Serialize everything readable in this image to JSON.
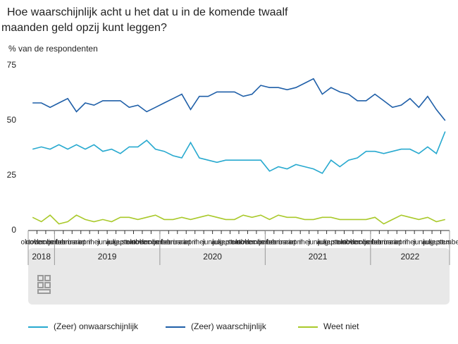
{
  "chart_data": {
    "type": "line",
    "title": [
      "Hoe waarschijnlijk acht u het dat u in de komende twaalf",
      "maanden geld opzij kunt leggen?"
    ],
    "subtitle": "% van de respondenten",
    "categories": [
      "oktober",
      "november",
      "december",
      "januari",
      "februari",
      "maart",
      "april",
      "mei",
      "juni",
      "juli",
      "augustus",
      "september",
      "oktober",
      "november",
      "december",
      "januari",
      "februari",
      "maart",
      "april",
      "mei",
      "juni",
      "juli",
      "augustus",
      "september",
      "oktober",
      "november",
      "december",
      "januari",
      "februari",
      "maart",
      "april",
      "mei",
      "juni",
      "juli",
      "augustus",
      "september",
      "oktober",
      "november",
      "december",
      "januari",
      "februari",
      "maart",
      "april",
      "mei",
      "juni",
      "juli",
      "augustus",
      "september"
    ],
    "year_groups": [
      {
        "label": "2018",
        "months": 3
      },
      {
        "label": "2019",
        "months": 12
      },
      {
        "label": "2020",
        "months": 12
      },
      {
        "label": "2021",
        "months": 12
      },
      {
        "label": "2022",
        "months": 9
      }
    ],
    "series": [
      {
        "name": "(Zeer) onwaarschijnlijk",
        "color": "#27a9cf",
        "values": [
          37,
          38,
          37,
          39,
          37,
          39,
          37,
          39,
          36,
          37,
          35,
          38,
          38,
          41,
          37,
          36,
          34,
          33,
          40,
          33,
          32,
          31,
          32,
          32,
          32,
          32,
          32,
          27,
          29,
          28,
          30,
          29,
          28,
          26,
          32,
          29,
          32,
          33,
          36,
          36,
          35,
          36,
          37,
          37,
          35,
          38,
          35,
          45
        ]
      },
      {
        "name": "(Zeer) waarschijnlijk",
        "color": "#1f5fa8",
        "values": [
          58,
          58,
          56,
          58,
          60,
          54,
          58,
          57,
          59,
          59,
          59,
          56,
          57,
          54,
          56,
          58,
          60,
          62,
          55,
          61,
          61,
          63,
          63,
          63,
          61,
          62,
          66,
          65,
          65,
          64,
          65,
          67,
          69,
          62,
          65,
          63,
          62,
          59,
          59,
          62,
          59,
          56,
          57,
          60,
          56,
          61,
          55,
          50
        ]
      },
      {
        "name": "Weet niet",
        "color": "#a9c92a",
        "values": [
          6,
          4,
          7,
          3,
          4,
          7,
          5,
          4,
          5,
          4,
          6,
          6,
          5,
          6,
          7,
          5,
          5,
          6,
          5,
          6,
          7,
          6,
          5,
          5,
          7,
          6,
          7,
          5,
          7,
          6,
          6,
          5,
          5,
          6,
          6,
          5,
          5,
          5,
          5,
          6,
          3,
          5,
          7,
          6,
          5,
          6,
          4,
          5
        ]
      }
    ],
    "ylim": [
      0,
      75
    ],
    "yticks": [
      0,
      25,
      50,
      75
    ],
    "grid": false
  }
}
